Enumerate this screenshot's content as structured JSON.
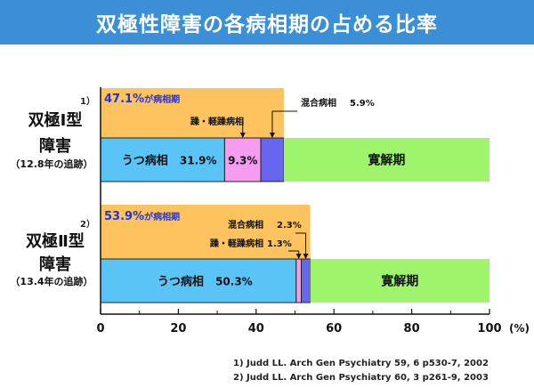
{
  "title": "双極性障害の各病相期の占める比率",
  "chart_data": {
    "type": "bar",
    "stacked": true,
    "orientation": "horizontal",
    "xlim": [
      0,
      100
    ],
    "x_unit": "(%)",
    "x_ticks": [
      0,
      20,
      40,
      60,
      80,
      100
    ],
    "groups": [
      {
        "name_line1": "双極Ⅰ型",
        "name_line2": "障害",
        "note": "（12.8年の追跡）",
        "ref": "1）",
        "total_label": "47.1%",
        "total_suffix": "が病相期",
        "total": 47.1,
        "segments": [
          {
            "label": "うつ病相",
            "value": 31.9,
            "value_text": "31.9%",
            "color": "#5bc4f7"
          },
          {
            "label": "躁・軽躁病相",
            "value": 9.3,
            "value_text": "9.3%",
            "color": "#f39cf0"
          },
          {
            "label": "混合病相",
            "value": 5.9,
            "value_text": "5.9%",
            "color": "#6666ee"
          },
          {
            "label": "寛解期",
            "value": 52.9,
            "value_text": "",
            "color": "#9ef56b"
          }
        ]
      },
      {
        "name_line1": "双極Ⅱ型",
        "name_line2": "障害",
        "note": "（13.4年の追跡）",
        "ref": "2）",
        "total_label": "53.9%",
        "total_suffix": "が病相期",
        "total": 53.9,
        "segments": [
          {
            "label": "うつ病相",
            "value": 50.3,
            "value_text": "50.3%",
            "color": "#5bc4f7"
          },
          {
            "label": "躁・軽躁病相",
            "value": 1.3,
            "value_text": "1.3%",
            "color": "#f39cf0"
          },
          {
            "label": "混合病相",
            "value": 2.3,
            "value_text": "2.3%",
            "color": "#6666ee"
          },
          {
            "label": "寛解期",
            "value": 46.1,
            "value_text": "",
            "color": "#9ef56b"
          }
        ]
      }
    ],
    "phase_box_color": "#fcc35e",
    "total_label_color": "#2233dd"
  },
  "references": [
    "1) Judd LL. Arch Gen Psychiatry 59, 6 p530-7, 2002",
    "2) Judd LL. Arch Gen Psychiatry 60, 3 p261-9, 2003"
  ]
}
